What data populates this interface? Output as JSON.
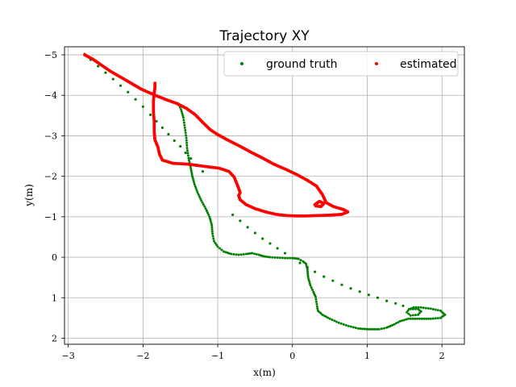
{
  "chart_data": {
    "type": "scatter",
    "title": "Trajectory XY",
    "xlabel": "x(m)",
    "ylabel": "y(m)",
    "xlim": [
      -3.05,
      2.3
    ],
    "ylim": [
      2.15,
      -5.2
    ],
    "xticks": [
      -3,
      -2,
      -1,
      0,
      1,
      2
    ],
    "yticks": [
      -5,
      -4,
      -3,
      -2,
      -1,
      0,
      1,
      2
    ],
    "xtick_labels": [
      "−3",
      "−2",
      "−1",
      "0",
      "1",
      "2"
    ],
    "ytick_labels": [
      "−5",
      "−4",
      "−3",
      "−2",
      "−1",
      "0",
      "1",
      "2"
    ],
    "grid": true,
    "legend": "top-right",
    "series": [
      {
        "name": "ground truth",
        "color": "#008000",
        "sparse_points": [
          [
            -2.78,
            -5.02
          ],
          [
            -2.7,
            -4.88
          ],
          [
            -2.6,
            -4.72
          ],
          [
            -2.5,
            -4.56
          ],
          [
            -2.4,
            -4.4
          ],
          [
            -2.3,
            -4.24
          ],
          [
            -2.2,
            -4.08
          ],
          [
            -2.1,
            -3.9
          ],
          [
            -2.0,
            -3.72
          ],
          [
            -1.9,
            -3.52
          ],
          [
            -1.82,
            -3.36
          ],
          [
            -1.74,
            -3.2
          ],
          [
            -1.66,
            -3.04
          ],
          [
            -1.58,
            -2.88
          ],
          [
            -1.5,
            -2.74
          ],
          [
            -1.43,
            -2.58
          ],
          [
            -1.36,
            -2.44
          ],
          [
            -1.28,
            -2.28
          ],
          [
            -1.2,
            -2.12
          ],
          [
            -0.8,
            -1.05
          ],
          [
            -0.7,
            -0.9
          ],
          [
            -0.6,
            -0.74
          ],
          [
            -0.5,
            -0.6
          ],
          [
            -0.4,
            -0.46
          ],
          [
            -0.3,
            -0.34
          ],
          [
            -0.2,
            -0.22
          ],
          [
            -0.1,
            -0.1
          ],
          [
            0.0,
            0.02
          ],
          [
            0.1,
            0.14
          ],
          [
            0.2,
            0.25
          ],
          [
            0.3,
            0.36
          ],
          [
            0.42,
            0.48
          ],
          [
            0.54,
            0.58
          ],
          [
            0.66,
            0.68
          ],
          [
            0.78,
            0.77
          ],
          [
            0.9,
            0.85
          ],
          [
            1.02,
            0.93
          ],
          [
            1.14,
            1.0
          ],
          [
            1.26,
            1.08
          ],
          [
            1.38,
            1.14
          ],
          [
            1.48,
            1.2
          ]
        ],
        "path": [
          [
            -1.53,
            -3.8
          ],
          [
            -1.49,
            -3.65
          ],
          [
            -1.46,
            -3.45
          ],
          [
            -1.44,
            -3.2
          ],
          [
            -1.42,
            -2.95
          ],
          [
            -1.41,
            -2.7
          ],
          [
            -1.39,
            -2.45
          ],
          [
            -1.36,
            -2.2
          ],
          [
            -1.34,
            -2.0
          ],
          [
            -1.31,
            -1.8
          ],
          [
            -1.27,
            -1.6
          ],
          [
            -1.22,
            -1.4
          ],
          [
            -1.16,
            -1.2
          ],
          [
            -1.11,
            -1.0
          ],
          [
            -1.08,
            -0.8
          ],
          [
            -1.07,
            -0.58
          ],
          [
            -1.05,
            -0.4
          ],
          [
            -1.0,
            -0.26
          ],
          [
            -0.92,
            -0.14
          ],
          [
            -0.82,
            -0.08
          ],
          [
            -0.72,
            -0.06
          ],
          [
            -0.62,
            -0.08
          ],
          [
            -0.54,
            -0.1
          ],
          [
            -0.45,
            -0.06
          ],
          [
            -0.38,
            -0.02
          ],
          [
            -0.3,
            0.0
          ],
          [
            -0.2,
            0.01
          ],
          [
            -0.1,
            0.02
          ],
          [
            0.0,
            0.02
          ],
          [
            0.08,
            0.04
          ],
          [
            0.14,
            0.1
          ],
          [
            0.18,
            0.16
          ],
          [
            0.2,
            0.3
          ],
          [
            0.21,
            0.5
          ],
          [
            0.24,
            0.7
          ],
          [
            0.28,
            0.86
          ],
          [
            0.31,
            0.98
          ],
          [
            0.32,
            1.1
          ],
          [
            0.33,
            1.22
          ],
          [
            0.34,
            1.32
          ],
          [
            0.4,
            1.42
          ],
          [
            0.5,
            1.52
          ],
          [
            0.62,
            1.62
          ],
          [
            0.75,
            1.7
          ],
          [
            0.88,
            1.76
          ],
          [
            1.02,
            1.78
          ],
          [
            1.16,
            1.78
          ],
          [
            1.26,
            1.74
          ],
          [
            1.36,
            1.66
          ],
          [
            1.44,
            1.58
          ],
          [
            1.55,
            1.52
          ],
          [
            1.7,
            1.52
          ],
          [
            1.85,
            1.52
          ],
          [
            1.98,
            1.5
          ],
          [
            2.04,
            1.42
          ],
          [
            1.98,
            1.32
          ],
          [
            1.85,
            1.27
          ],
          [
            1.72,
            1.24
          ],
          [
            1.62,
            1.24
          ],
          [
            1.56,
            1.28
          ],
          [
            1.53,
            1.36
          ],
          [
            1.58,
            1.44
          ],
          [
            1.68,
            1.42
          ],
          [
            1.72,
            1.34
          ],
          [
            1.68,
            1.28
          ],
          [
            1.58,
            1.28
          ]
        ]
      },
      {
        "name": "estimated",
        "color": "#ff0000",
        "path": [
          [
            -2.78,
            -5.0
          ],
          [
            -2.66,
            -4.88
          ],
          [
            -2.55,
            -4.74
          ],
          [
            -2.44,
            -4.6
          ],
          [
            -2.3,
            -4.45
          ],
          [
            -2.16,
            -4.3
          ],
          [
            -2.02,
            -4.15
          ],
          [
            -1.86,
            -4.02
          ],
          [
            -1.7,
            -3.9
          ],
          [
            -1.55,
            -3.8
          ],
          [
            -1.42,
            -3.68
          ],
          [
            -1.3,
            -3.52
          ],
          [
            -1.2,
            -3.33
          ],
          [
            -1.1,
            -3.15
          ],
          [
            -1.0,
            -3.03
          ],
          [
            -0.85,
            -2.88
          ],
          [
            -0.7,
            -2.74
          ],
          [
            -0.56,
            -2.6
          ],
          [
            -0.4,
            -2.45
          ],
          [
            -0.25,
            -2.3
          ],
          [
            -0.1,
            -2.18
          ],
          [
            0.05,
            -2.05
          ],
          [
            0.2,
            -1.9
          ],
          [
            0.32,
            -1.76
          ],
          [
            0.4,
            -1.55
          ],
          [
            0.45,
            -1.35
          ],
          [
            0.55,
            -1.25
          ],
          [
            0.68,
            -1.18
          ],
          [
            0.74,
            -1.12
          ],
          [
            0.66,
            -1.06
          ],
          [
            0.5,
            -1.04
          ],
          [
            0.33,
            -1.03
          ],
          [
            0.18,
            -1.02
          ],
          [
            0.05,
            -1.02
          ],
          [
            -0.08,
            -1.03
          ],
          [
            -0.22,
            -1.06
          ],
          [
            -0.36,
            -1.12
          ],
          [
            -0.5,
            -1.2
          ],
          [
            -0.62,
            -1.3
          ],
          [
            -0.7,
            -1.42
          ],
          [
            -0.72,
            -1.52
          ],
          [
            -0.7,
            -1.6
          ],
          [
            -0.73,
            -1.75
          ],
          [
            -0.78,
            -1.98
          ],
          [
            -0.85,
            -2.12
          ],
          [
            -0.98,
            -2.2
          ],
          [
            -1.2,
            -2.25
          ],
          [
            -1.4,
            -2.3
          ],
          [
            -1.6,
            -2.32
          ],
          [
            -1.74,
            -2.4
          ],
          [
            -1.78,
            -2.55
          ],
          [
            -1.8,
            -2.72
          ],
          [
            -1.84,
            -2.9
          ],
          [
            -1.85,
            -3.1
          ],
          [
            -1.85,
            -3.35
          ],
          [
            -1.86,
            -3.6
          ],
          [
            -1.86,
            -3.85
          ],
          [
            -1.85,
            -4.05
          ],
          [
            -1.84,
            -4.2
          ],
          [
            -1.84,
            -4.3
          ]
        ],
        "loop_points": [
          [
            0.3,
            -1.3
          ],
          [
            0.36,
            -1.38
          ],
          [
            0.42,
            -1.33
          ],
          [
            0.38,
            -1.25
          ],
          [
            0.31,
            -1.27
          ],
          [
            0.33,
            -1.34
          ]
        ]
      }
    ]
  }
}
